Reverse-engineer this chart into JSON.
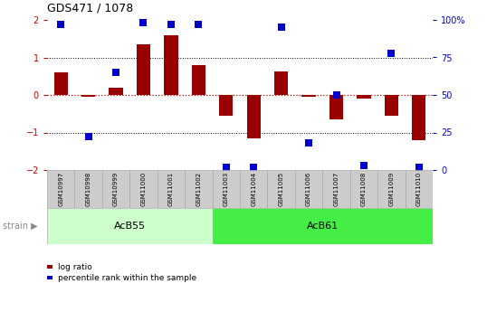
{
  "title": "GDS471 / 1078",
  "samples": [
    "GSM10997",
    "GSM10998",
    "GSM10999",
    "GSM11000",
    "GSM11001",
    "GSM11002",
    "GSM11003",
    "GSM11004",
    "GSM11005",
    "GSM11006",
    "GSM11007",
    "GSM11008",
    "GSM11009",
    "GSM11010"
  ],
  "log_ratio": [
    0.6,
    -0.05,
    0.2,
    1.35,
    1.6,
    0.8,
    -0.55,
    -1.15,
    0.62,
    -0.05,
    -0.65,
    -0.1,
    -0.55,
    -1.2
  ],
  "percentile_rank": [
    97,
    22,
    65,
    98,
    97,
    97,
    2,
    2,
    95,
    18,
    50,
    3,
    78,
    2
  ],
  "groups": [
    {
      "label": "AcB55",
      "start": 0,
      "end": 5
    },
    {
      "label": "AcB61",
      "start": 6,
      "end": 13
    }
  ],
  "bar_color": "#990000",
  "dot_color": "#0000cc",
  "left_axis_color": "#cc0000",
  "right_axis_color": "#0000cc",
  "ylim": [
    -2,
    2
  ],
  "right_ylim": [
    0,
    100
  ],
  "right_yticks": [
    0,
    25,
    50,
    75,
    100
  ],
  "right_yticklabels": [
    "0",
    "25",
    "50",
    "75",
    "100%"
  ],
  "left_yticks": [
    -2,
    -1,
    0,
    1,
    2
  ],
  "bg_color": "#ffffff",
  "bar_width": 0.5,
  "dot_size": 35,
  "acb55_color": "#ccffcc",
  "acb61_color": "#44ee44",
  "sample_box_color": "#cccccc",
  "legend_items": [
    {
      "color": "#990000",
      "label": "log ratio"
    },
    {
      "color": "#0000cc",
      "label": "percentile rank within the sample"
    }
  ]
}
